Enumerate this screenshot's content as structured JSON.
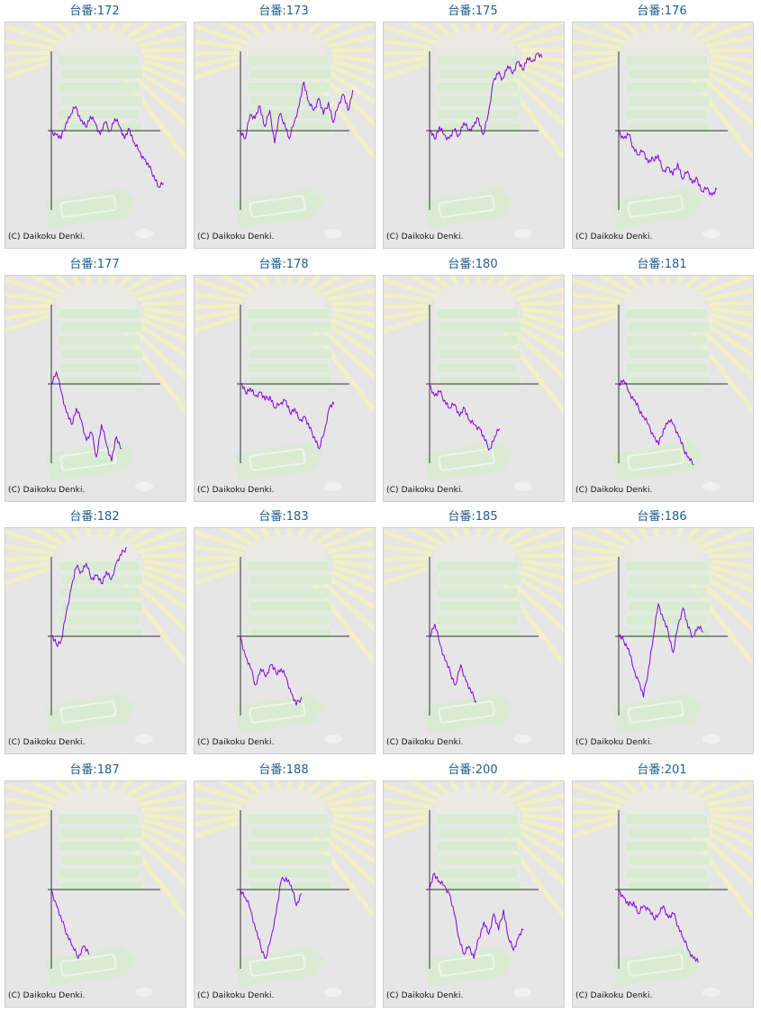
{
  "copyright": "(C) Daikoku Denki.",
  "title_prefix": "台番:",
  "colors": {
    "title": "#1f5f8f",
    "line": "#8a00e0",
    "axis": "#333333",
    "panel": "#e6e6e6",
    "rays": "#f3f0c4",
    "machine": "#d8edd2"
  },
  "charts": [
    {
      "number": "172",
      "values": [
        0,
        -0.05,
        -0.1,
        0.1,
        0.2,
        0.3,
        0.12,
        0.05,
        0.18,
        0.1,
        -0.05,
        0.1,
        0.0,
        0.15,
        0.05,
        -0.1,
        0.02,
        -0.15,
        -0.25,
        -0.35,
        -0.45,
        -0.55,
        -0.7,
        -0.65
      ]
    },
    {
      "number": "173",
      "values": [
        0,
        -0.1,
        0.2,
        0.15,
        0.3,
        0.05,
        0.25,
        -0.15,
        0.2,
        0.1,
        -0.1,
        0.1,
        0.3,
        0.6,
        0.35,
        0.25,
        0.4,
        0.2,
        0.35,
        0.1,
        0.3,
        0.45,
        0.25,
        0.5
      ]
    },
    {
      "number": "175",
      "values": [
        0,
        -0.1,
        0.05,
        -0.05,
        -0.1,
        0.0,
        -0.05,
        0.1,
        0.0,
        0.05,
        0.15,
        -0.05,
        0.2,
        0.6,
        0.7,
        0.65,
        0.8,
        0.7,
        0.85,
        0.75,
        0.9,
        0.85,
        0.95,
        0.9
      ]
    },
    {
      "number": "176",
      "values": [
        0,
        -0.1,
        -0.05,
        -0.2,
        -0.3,
        -0.25,
        -0.4,
        -0.35,
        -0.3,
        -0.5,
        -0.45,
        -0.55,
        -0.4,
        -0.6,
        -0.5,
        -0.65,
        -0.6,
        -0.75,
        -0.7,
        -0.8,
        -0.72
      ]
    },
    {
      "number": "177",
      "values": [
        0,
        0.15,
        -0.1,
        -0.35,
        -0.5,
        -0.3,
        -0.45,
        -0.7,
        -0.6,
        -0.9,
        -0.5,
        -0.75,
        -0.95,
        -0.65,
        -0.8
      ]
    },
    {
      "number": "178",
      "values": [
        0,
        -0.1,
        -0.05,
        -0.15,
        -0.1,
        -0.2,
        -0.15,
        -0.3,
        -0.25,
        -0.2,
        -0.35,
        -0.3,
        -0.45,
        -0.4,
        -0.55,
        -0.65,
        -0.8,
        -0.6,
        -0.3,
        -0.25
      ]
    },
    {
      "number": "180",
      "values": [
        0,
        -0.15,
        -0.1,
        -0.2,
        -0.3,
        -0.25,
        -0.4,
        -0.3,
        -0.45,
        -0.5,
        -0.55,
        -0.7,
        -0.8,
        -0.65,
        -0.55
      ]
    },
    {
      "number": "181",
      "values": [
        0,
        0.05,
        -0.1,
        -0.2,
        -0.3,
        -0.4,
        -0.5,
        -0.65,
        -0.75,
        -0.55,
        -0.45,
        -0.5,
        -0.65,
        -0.8,
        -0.9,
        -1.0
      ]
    },
    {
      "number": "182",
      "values": [
        0,
        -0.1,
        -0.05,
        0.3,
        0.6,
        0.85,
        0.8,
        0.9,
        0.7,
        0.75,
        0.65,
        0.8,
        0.7,
        0.9,
        1.0,
        1.1
      ]
    },
    {
      "number": "183",
      "values": [
        0,
        -0.25,
        -0.4,
        -0.6,
        -0.4,
        -0.5,
        -0.35,
        -0.45,
        -0.4,
        -0.5,
        -0.7,
        -0.85,
        -0.75
      ]
    },
    {
      "number": "185",
      "values": [
        0,
        0.15,
        -0.1,
        -0.3,
        -0.45,
        -0.6,
        -0.35,
        -0.55,
        -0.7,
        -0.8
      ]
    },
    {
      "number": "186",
      "values": [
        0,
        -0.05,
        -0.15,
        -0.4,
        -0.55,
        -0.75,
        -0.4,
        0.0,
        0.4,
        0.2,
        0.05,
        -0.2,
        0.15,
        0.35,
        0.1,
        0.0,
        0.12,
        0.05
      ]
    },
    {
      "number": "187",
      "values": [
        0,
        -0.2,
        -0.4,
        -0.55,
        -0.7,
        -0.85,
        -0.7,
        -0.8
      ]
    },
    {
      "number": "188",
      "values": [
        0,
        -0.1,
        -0.25,
        -0.5,
        -0.7,
        -0.85,
        -0.6,
        -0.3,
        0.1,
        0.15,
        0.05,
        -0.2,
        -0.05
      ]
    },
    {
      "number": "200",
      "values": [
        0,
        0.2,
        0.1,
        0.05,
        -0.05,
        -0.3,
        -0.6,
        -0.8,
        -0.7,
        -0.85,
        -0.6,
        -0.4,
        -0.55,
        -0.3,
        -0.5,
        -0.25,
        -0.6,
        -0.75,
        -0.6,
        -0.5
      ]
    },
    {
      "number": "201",
      "values": [
        0,
        -0.1,
        -0.2,
        -0.15,
        -0.3,
        -0.2,
        -0.25,
        -0.35,
        -0.3,
        -0.2,
        -0.35,
        -0.3,
        -0.45,
        -0.6,
        -0.75,
        -0.85,
        -0.9
      ]
    }
  ]
}
